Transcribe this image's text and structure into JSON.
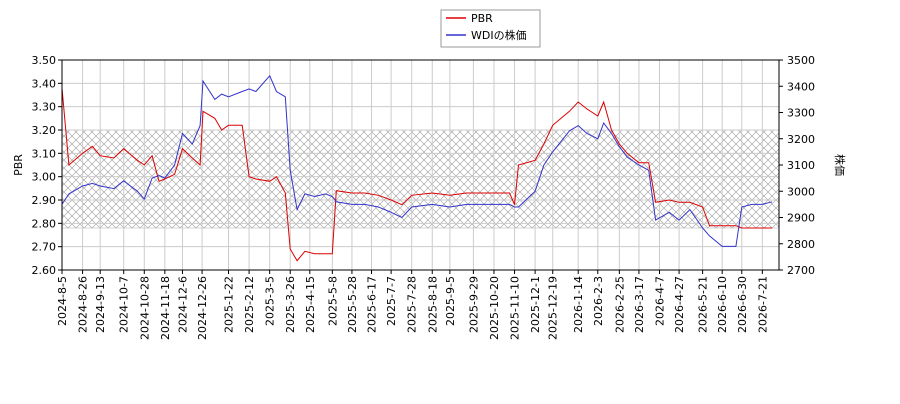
{
  "chart_data": {
    "type": "line",
    "x": [
      "2024-8-5",
      "2024-8-12",
      "2024-8-26",
      "2024-9-5",
      "2024-9-13",
      "2024-9-27",
      "2024-10-7",
      "2024-10-21",
      "2024-10-28",
      "2024-11-5",
      "2024-11-12",
      "2024-11-18",
      "2024-11-28",
      "2024-12-6",
      "2024-12-16",
      "2024-12-24",
      "2024-12-27",
      "2025-1-8",
      "2025-1-15",
      "2025-1-22",
      "2025-2-5",
      "2025-2-12",
      "2025-2-19",
      "2025-3-5",
      "2025-3-12",
      "2025-3-21",
      "2025-3-26",
      "2025-4-2",
      "2025-4-10",
      "2025-4-20",
      "2025-5-1",
      "2025-5-8",
      "2025-5-12",
      "2025-5-28",
      "2025-6-10",
      "2025-6-24",
      "2025-7-7",
      "2025-7-18",
      "2025-7-28",
      "2025-8-18",
      "2025-9-5",
      "2025-9-22",
      "2025-10-20",
      "2025-11-5",
      "2025-11-10",
      "2025-11-14",
      "2025-12-1",
      "2025-12-10",
      "2025-12-19",
      "2026-1-5",
      "2026-1-14",
      "2026-1-23",
      "2026-2-3",
      "2026-2-9",
      "2026-2-17",
      "2026-2-25",
      "2026-3-5",
      "2026-3-17",
      "2026-3-27",
      "2026-4-3",
      "2026-4-17",
      "2026-4-27",
      "2026-5-8",
      "2026-5-21",
      "2026-5-28",
      "2026-6-10",
      "2026-6-24",
      "2026-6-30",
      "2026-7-10",
      "2026-7-21",
      "2026-7-31"
    ],
    "series": [
      {
        "name": "PBR",
        "color": "#dd0000",
        "axis": "y",
        "values": [
          3.38,
          3.05,
          3.1,
          3.13,
          3.09,
          3.08,
          3.12,
          3.07,
          3.05,
          3.09,
          2.98,
          2.99,
          3.01,
          3.12,
          3.08,
          3.05,
          3.28,
          3.25,
          3.2,
          3.22,
          3.22,
          3.0,
          2.99,
          2.98,
          3.0,
          2.93,
          2.69,
          2.64,
          2.68,
          2.67,
          2.67,
          2.67,
          2.94,
          2.93,
          2.93,
          2.92,
          2.9,
          2.88,
          2.92,
          2.93,
          2.92,
          2.93,
          2.93,
          2.93,
          2.88,
          3.05,
          3.07,
          3.14,
          3.22,
          3.28,
          3.32,
          3.29,
          3.26,
          3.32,
          3.2,
          3.14,
          3.1,
          3.06,
          3.06,
          2.89,
          2.9,
          2.89,
          2.89,
          2.87,
          2.79,
          2.79,
          2.79,
          2.78,
          2.78,
          2.78,
          2.78
        ]
      },
      {
        "name": "WDIの株価",
        "color": "#3333cc",
        "axis": "y2",
        "values": [
          2950,
          2990,
          3020,
          3030,
          3020,
          3010,
          3040,
          3000,
          2970,
          3050,
          3060,
          3050,
          3100,
          3220,
          3180,
          3250,
          3420,
          3350,
          3370,
          3360,
          3380,
          3390,
          3380,
          3440,
          3380,
          3360,
          3080,
          2930,
          2990,
          2980,
          2990,
          2980,
          2960,
          2950,
          2950,
          2940,
          2920,
          2900,
          2940,
          2950,
          2940,
          2950,
          2950,
          2950,
          2940,
          2940,
          3000,
          3100,
          3150,
          3230,
          3250,
          3220,
          3200,
          3260,
          3220,
          3170,
          3130,
          3100,
          3080,
          2890,
          2920,
          2890,
          2930,
          2860,
          2830,
          2790,
          2790,
          2940,
          2950,
          2950,
          2960
        ]
      }
    ],
    "xlim": [
      "2024-8-5",
      "2026-8-7"
    ],
    "xticks": [
      "2024-8-5",
      "2024-8-26",
      "2024-9-13",
      "2024-10-7",
      "2024-10-28",
      "2024-11-18",
      "2024-12-6",
      "2024-12-26",
      "2025-1-22",
      "2025-2-12",
      "2025-3-5",
      "2025-3-26",
      "2025-4-15",
      "2025-5-8",
      "2025-5-28",
      "2025-6-17",
      "2025-7-7",
      "2025-7-28",
      "2025-8-18",
      "2025-9-5",
      "2025-9-29",
      "2025-10-20",
      "2025-11-10",
      "2025-12-1",
      "2025-12-19",
      "2026-1-14",
      "2026-2-3",
      "2026-2-25",
      "2026-3-17",
      "2026-4-7",
      "2026-4-27",
      "2026-5-21",
      "2026-6-10",
      "2026-6-30",
      "2026-7-21"
    ],
    "ylim": [
      2.6,
      3.5
    ],
    "yticks": [
      {
        "value": 2.6,
        "label": "2.60"
      },
      {
        "value": 2.7,
        "label": "2.70"
      },
      {
        "value": 2.8,
        "label": "2.80"
      },
      {
        "value": 2.9,
        "label": "2.90"
      },
      {
        "value": 3.0,
        "label": "3.00"
      },
      {
        "value": 3.1,
        "label": "3.10"
      },
      {
        "value": 3.2,
        "label": "3.20"
      },
      {
        "value": 3.3,
        "label": "3.30"
      },
      {
        "value": 3.4,
        "label": "3.40"
      },
      {
        "value": 3.5,
        "label": "3.50"
      }
    ],
    "y2lim": [
      2700,
      3500
    ],
    "y2ticks": [
      2700,
      2800,
      2900,
      3000,
      3100,
      3200,
      3300,
      3400,
      3500
    ],
    "ylabel": "PBR",
    "y2label": "株価",
    "shaded_range": [
      2.78,
      3.2
    ],
    "grid": true,
    "legend": "top"
  }
}
